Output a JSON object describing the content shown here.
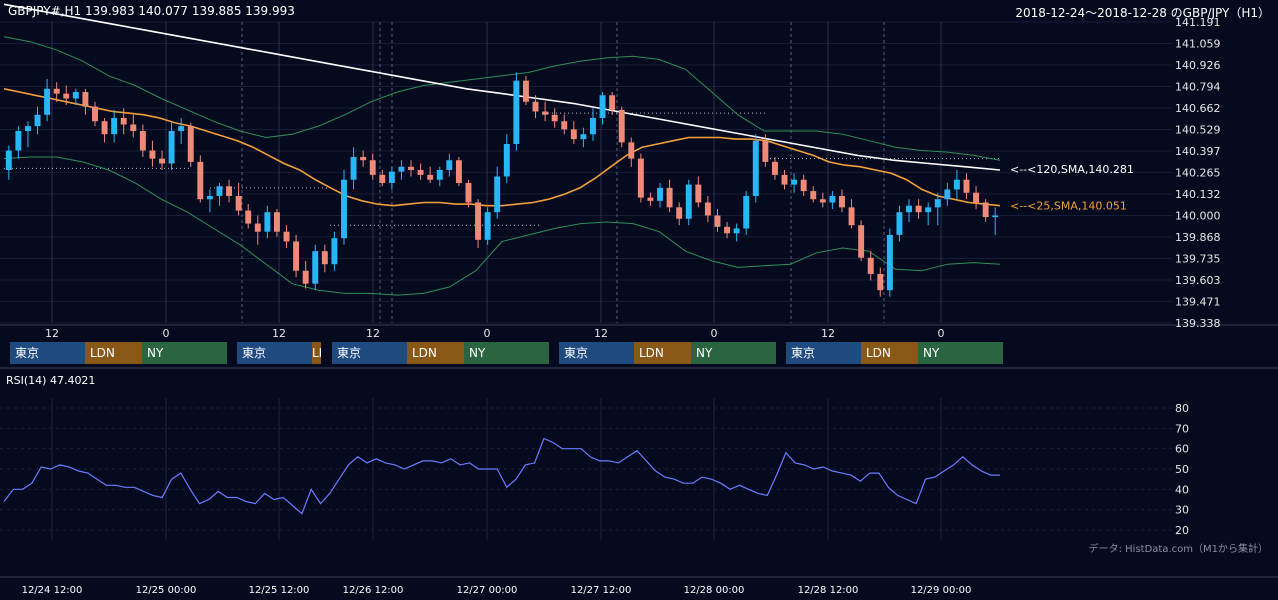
{
  "header": {
    "quote": "GBPJPY#,H1 139.983 140.077 139.885 139.993",
    "range": "2018-12-24～2018-12-28 のGBP/JPY（H1）"
  },
  "annotations": {
    "sma120": "<--<120,SMA,140.281",
    "sma25": "<--<25,SMA,140.051"
  },
  "session_labels": {
    "tokyo": "東京",
    "london": "LDN",
    "ny": "NY"
  },
  "session_days": [
    [
      "tokyo",
      "london",
      "ny"
    ],
    [
      "tokyo",
      "london"
    ],
    [
      "tokyo",
      "london",
      "ny"
    ],
    [
      "tokyo",
      "london",
      "ny"
    ],
    [
      "tokyo",
      "london",
      "ny"
    ]
  ],
  "rsi": {
    "label": "RSI(14) 47.4021"
  },
  "credit": "データ: HistData.com（M1から集計）",
  "colors": {
    "background": "#060a1e",
    "up": "#29b6f6",
    "down": "#f08a78",
    "sma25": "#f2a03a",
    "sma120": "#ffffff",
    "bollinger": "#2f8f5a",
    "rsi": "#6a7cff"
  },
  "chart_data": [
    {
      "type": "candlestick",
      "title": "GBPJPY#,H1",
      "ylim": [
        139.338,
        141.191
      ],
      "y_ticks": [
        "141.191",
        "141.059",
        "140.926",
        "140.794",
        "140.662",
        "140.529",
        "140.397",
        "140.265",
        "140.132",
        "140.000",
        "139.868",
        "139.735",
        "139.603",
        "139.471",
        "139.338"
      ],
      "x_ticks": [
        "12",
        "0",
        "12",
        "12",
        "0",
        "12",
        "0",
        "12",
        "0"
      ],
      "x_dates": [
        "12/24 12:00",
        "12/25 00:00",
        "12/25 12:00",
        "12/26 12:00",
        "12/27 00:00",
        "12/27 12:00",
        "12/28 00:00",
        "12/28 12:00",
        "12/29 00:00"
      ],
      "candles": [
        [
          140.28,
          140.43,
          140.22,
          140.4
        ],
        [
          140.4,
          140.55,
          140.35,
          140.52
        ],
        [
          140.52,
          140.58,
          140.42,
          140.55
        ],
        [
          140.55,
          140.67,
          140.5,
          140.62
        ],
        [
          140.62,
          140.84,
          140.58,
          140.78
        ],
        [
          140.78,
          140.82,
          140.7,
          140.75
        ],
        [
          140.75,
          140.8,
          140.68,
          140.72
        ],
        [
          140.72,
          140.78,
          140.68,
          140.76
        ],
        [
          140.76,
          140.78,
          140.62,
          140.67
        ],
        [
          140.67,
          140.7,
          140.55,
          140.58
        ],
        [
          140.58,
          140.6,
          140.45,
          140.5
        ],
        [
          140.5,
          140.65,
          140.45,
          140.6
        ],
        [
          140.6,
          140.66,
          140.5,
          140.56
        ],
        [
          140.56,
          140.62,
          140.48,
          140.52
        ],
        [
          140.52,
          140.56,
          140.36,
          140.4
        ],
        [
          140.4,
          140.46,
          140.3,
          140.35
        ],
        [
          140.35,
          140.4,
          140.28,
          140.32
        ],
        [
          140.32,
          140.58,
          140.28,
          140.52
        ],
        [
          140.52,
          140.6,
          140.44,
          140.55
        ],
        [
          140.55,
          140.57,
          140.3,
          140.33
        ],
        [
          140.33,
          140.37,
          140.08,
          140.1
        ],
        [
          140.1,
          140.16,
          140.02,
          140.12
        ],
        [
          140.12,
          140.2,
          140.06,
          140.18
        ],
        [
          140.18,
          140.22,
          140.08,
          140.12
        ],
        [
          140.12,
          140.2,
          140.0,
          140.03
        ],
        [
          140.03,
          140.07,
          139.92,
          139.95
        ],
        [
          139.95,
          140.0,
          139.82,
          139.9
        ],
        [
          139.9,
          140.06,
          139.86,
          140.02
        ],
        [
          140.02,
          140.04,
          139.87,
          139.9
        ],
        [
          139.9,
          139.94,
          139.8,
          139.84
        ],
        [
          139.84,
          139.88,
          139.62,
          139.66
        ],
        [
          139.66,
          139.72,
          139.55,
          139.58
        ],
        [
          139.58,
          139.82,
          139.54,
          139.78
        ],
        [
          139.78,
          139.82,
          139.65,
          139.7
        ],
        [
          139.7,
          139.9,
          139.66,
          139.86
        ],
        [
          139.86,
          140.28,
          139.82,
          140.22
        ],
        [
          140.22,
          140.42,
          140.16,
          140.36
        ],
        [
          140.36,
          140.4,
          140.3,
          140.34
        ],
        [
          140.34,
          140.38,
          140.22,
          140.25
        ],
        [
          140.25,
          140.28,
          140.18,
          140.2
        ],
        [
          140.2,
          140.3,
          140.16,
          140.27
        ],
        [
          140.27,
          140.34,
          140.22,
          140.3
        ],
        [
          140.3,
          140.34,
          140.24,
          140.28
        ],
        [
          140.28,
          140.32,
          140.22,
          140.25
        ],
        [
          140.25,
          140.3,
          140.2,
          140.22
        ],
        [
          140.22,
          140.3,
          140.18,
          140.28
        ],
        [
          140.28,
          140.38,
          140.24,
          140.34
        ],
        [
          140.34,
          140.36,
          140.18,
          140.2
        ],
        [
          140.2,
          140.22,
          140.05,
          140.08
        ],
        [
          140.08,
          140.1,
          139.8,
          139.85
        ],
        [
          139.85,
          140.05,
          139.82,
          140.02
        ],
        [
          140.02,
          140.3,
          139.98,
          140.24
        ],
        [
          140.24,
          140.5,
          140.2,
          140.44
        ],
        [
          140.44,
          140.88,
          140.4,
          140.83
        ],
        [
          140.83,
          140.86,
          140.68,
          140.7
        ],
        [
          140.7,
          140.74,
          140.6,
          140.64
        ],
        [
          140.64,
          140.7,
          140.58,
          140.62
        ],
        [
          140.62,
          140.66,
          140.54,
          140.58
        ],
        [
          140.58,
          140.62,
          140.5,
          140.53
        ],
        [
          140.53,
          140.58,
          140.44,
          140.47
        ],
        [
          140.47,
          140.54,
          140.42,
          140.5
        ],
        [
          140.5,
          140.66,
          140.46,
          140.6
        ],
        [
          140.6,
          140.76,
          140.56,
          140.74
        ],
        [
          140.74,
          140.76,
          140.62,
          140.65
        ],
        [
          140.65,
          140.67,
          140.42,
          140.45
        ],
        [
          140.45,
          140.48,
          140.3,
          140.35
        ],
        [
          140.35,
          140.38,
          140.08,
          140.11
        ],
        [
          140.11,
          140.14,
          140.06,
          140.09
        ],
        [
          140.09,
          140.2,
          140.05,
          140.17
        ],
        [
          140.17,
          140.22,
          140.02,
          140.05
        ],
        [
          140.05,
          140.08,
          139.94,
          139.98
        ],
        [
          139.98,
          140.22,
          139.94,
          140.19
        ],
        [
          140.19,
          140.24,
          140.05,
          140.08
        ],
        [
          140.08,
          140.12,
          139.96,
          140.0
        ],
        [
          140.0,
          140.04,
          139.9,
          139.93
        ],
        [
          139.93,
          139.96,
          139.86,
          139.89
        ],
        [
          139.89,
          139.95,
          139.84,
          139.92
        ],
        [
          139.92,
          140.15,
          139.88,
          140.12
        ],
        [
          140.12,
          140.5,
          140.08,
          140.46
        ],
        [
          140.46,
          140.5,
          140.3,
          140.33
        ],
        [
          140.33,
          140.36,
          140.22,
          140.25
        ],
        [
          140.25,
          140.28,
          140.16,
          140.19
        ],
        [
          140.19,
          140.26,
          140.14,
          140.22
        ],
        [
          140.22,
          140.25,
          140.12,
          140.15
        ],
        [
          140.15,
          140.18,
          140.08,
          140.1
        ],
        [
          140.1,
          140.14,
          140.05,
          140.08
        ],
        [
          140.08,
          140.15,
          140.04,
          140.12
        ],
        [
          140.12,
          140.16,
          140.02,
          140.05
        ],
        [
          140.05,
          140.1,
          139.92,
          139.94
        ],
        [
          139.94,
          139.97,
          139.72,
          139.74
        ],
        [
          139.74,
          139.78,
          139.6,
          139.64
        ],
        [
          139.64,
          139.68,
          139.5,
          139.54
        ],
        [
          139.54,
          139.92,
          139.5,
          139.88
        ],
        [
          139.88,
          140.06,
          139.84,
          140.02
        ],
        [
          140.02,
          140.1,
          139.96,
          140.06
        ],
        [
          140.06,
          140.1,
          139.98,
          140.02
        ],
        [
          140.02,
          140.08,
          139.94,
          140.05
        ],
        [
          140.05,
          140.14,
          139.94,
          140.1
        ],
        [
          140.1,
          140.2,
          140.06,
          140.16
        ],
        [
          140.16,
          140.28,
          140.1,
          140.22
        ],
        [
          140.22,
          140.26,
          140.1,
          140.14
        ],
        [
          140.14,
          140.18,
          140.04,
          140.08
        ],
        [
          140.08,
          140.1,
          139.96,
          139.99
        ],
        [
          139.99,
          140.05,
          139.88,
          140.0
        ]
      ],
      "sma25": [
        140.78,
        140.76,
        140.74,
        140.72,
        140.7,
        140.68,
        140.66,
        140.64,
        140.63,
        140.62,
        140.6,
        140.57,
        140.55,
        140.52,
        140.49,
        140.46,
        140.42,
        140.37,
        140.32,
        140.28,
        140.22,
        140.17,
        140.12,
        140.09,
        140.07,
        140.06,
        140.07,
        140.08,
        140.08,
        140.07,
        140.07,
        140.06,
        140.06,
        140.07,
        140.08,
        140.1,
        140.13,
        140.17,
        140.23,
        140.3,
        140.37,
        140.42,
        140.44,
        140.46,
        140.48,
        140.48,
        140.48,
        140.47,
        140.47,
        140.46,
        140.43,
        140.4,
        140.37,
        140.33,
        140.31,
        140.3,
        140.28,
        140.26,
        140.22,
        140.16,
        140.12,
        140.1,
        140.08,
        140.07,
        140.06
      ],
      "sma120": [
        141.3,
        141.26,
        141.22,
        141.18,
        141.14,
        141.1,
        141.06,
        141.02,
        140.98,
        140.94,
        140.9,
        140.86,
        140.82,
        140.78,
        140.75,
        140.72,
        140.69,
        140.65,
        140.61,
        140.57,
        140.53,
        140.49,
        140.45,
        140.41,
        140.37,
        140.34,
        140.32,
        140.3,
        140.28
      ],
      "bollinger_upper": [
        141.1,
        141.07,
        141.02,
        140.95,
        140.86,
        140.8,
        140.72,
        140.65,
        140.58,
        140.52,
        140.48,
        140.5,
        140.55,
        140.62,
        140.7,
        140.76,
        140.8,
        140.82,
        140.84,
        140.86,
        140.88,
        140.92,
        140.95,
        140.97,
        140.98,
        140.96,
        140.9,
        140.76,
        140.62,
        140.52,
        140.52,
        140.52,
        140.5,
        140.46,
        140.42,
        140.4,
        140.39,
        140.37,
        140.34
      ],
      "bollinger_lower": [
        140.35,
        140.36,
        140.36,
        140.33,
        140.28,
        140.2,
        140.1,
        140.02,
        139.92,
        139.82,
        139.7,
        139.58,
        139.54,
        139.52,
        139.52,
        139.51,
        139.52,
        139.56,
        139.66,
        139.84,
        139.88,
        139.92,
        139.95,
        139.96,
        139.95,
        139.9,
        139.78,
        139.72,
        139.68,
        139.69,
        139.7,
        139.77,
        139.8,
        139.78,
        139.67,
        139.66,
        139.7,
        139.71,
        139.7
      ],
      "dotted_levels": [
        140.29,
        140.17,
        139.94,
        140.63,
        140.35
      ]
    },
    {
      "type": "line",
      "title": "RSI(14) 47.4021",
      "ylim": [
        20,
        80
      ],
      "y_ticks": [
        "80",
        "70",
        "60",
        "50",
        "40",
        "30",
        "20"
      ],
      "series": [
        {
          "name": "RSI(14)",
          "values": [
            34,
            40,
            40,
            43,
            51,
            50,
            52,
            51,
            49,
            48,
            45,
            42,
            42,
            41,
            41,
            39,
            37,
            36,
            45,
            48,
            40,
            33,
            35,
            39,
            36,
            36,
            34,
            33,
            38,
            35,
            36,
            32,
            28,
            40,
            33,
            38,
            45,
            52,
            56,
            53,
            55,
            53,
            52,
            50,
            52,
            54,
            54,
            53,
            55,
            52,
            53,
            50,
            50,
            50,
            41,
            45,
            52,
            53,
            65,
            63,
            60,
            60,
            60,
            56,
            54,
            54,
            53,
            56,
            59,
            54,
            49,
            46,
            45,
            43,
            43,
            46,
            45,
            43,
            40,
            42,
            40,
            38,
            37,
            47,
            58,
            53,
            52,
            50,
            51,
            49,
            48,
            47,
            44,
            48,
            48,
            41,
            37,
            35,
            33,
            45,
            46,
            49,
            52,
            56,
            52,
            49,
            47,
            47
          ]
        }
      ]
    }
  ]
}
